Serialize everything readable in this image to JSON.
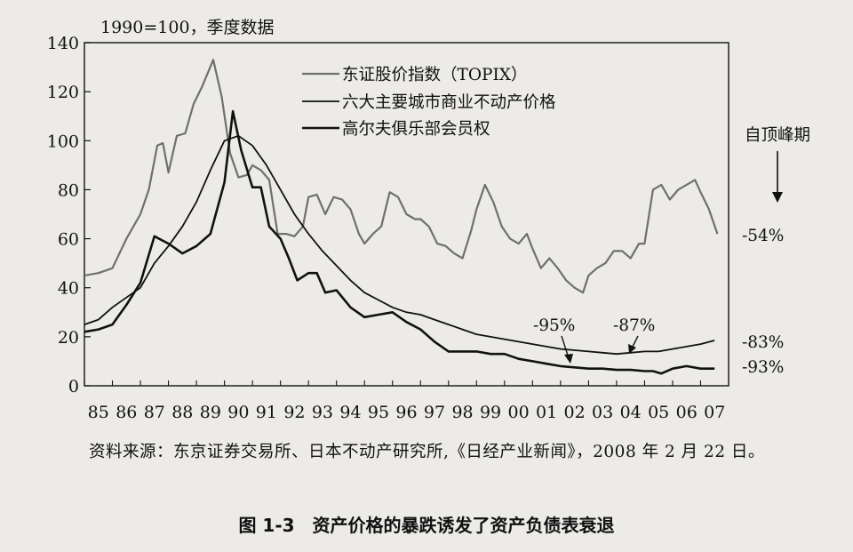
{
  "chart_data": {
    "type": "line",
    "unit_note": "1990=100，季度数据",
    "x_ticks": [
      "85",
      "86",
      "87",
      "88",
      "89",
      "90",
      "91",
      "92",
      "93",
      "94",
      "95",
      "96",
      "97",
      "98",
      "99",
      "00",
      "01",
      "02",
      "03",
      "04",
      "05",
      "06",
      "07"
    ],
    "y_ticks": [
      0,
      20,
      40,
      60,
      80,
      100,
      120,
      140
    ],
    "xlim": [
      1985,
      2008
    ],
    "ylim": [
      0,
      140
    ],
    "series": [
      {
        "name": "东证股价指数（TOPIX）",
        "color": "#6f6f6f",
        "style": "gray",
        "x": [
          1985,
          1985.5,
          1986,
          1986.5,
          1987,
          1987.3,
          1987.6,
          1987.8,
          1988,
          1988.3,
          1988.6,
          1988.9,
          1989.2,
          1989.6,
          1989.9,
          1990.2,
          1990.5,
          1990.8,
          1991,
          1991.3,
          1991.6,
          1991.9,
          1992.2,
          1992.5,
          1992.8,
          1993,
          1993.3,
          1993.6,
          1993.9,
          1994.2,
          1994.5,
          1994.8,
          1995,
          1995.3,
          1995.6,
          1995.9,
          1996.2,
          1996.5,
          1996.8,
          1997,
          1997.3,
          1997.6,
          1997.9,
          1998.2,
          1998.5,
          1998.8,
          1999,
          1999.3,
          1999.6,
          1999.9,
          2000.2,
          2000.5,
          2000.8,
          2001,
          2001.3,
          2001.6,
          2001.9,
          2002.2,
          2002.5,
          2002.8,
          2003,
          2003.3,
          2003.6,
          2003.9,
          2004.2,
          2004.5,
          2004.8,
          2005,
          2005.3,
          2005.6,
          2005.9,
          2006.2,
          2006.5,
          2006.8,
          2007,
          2007.3,
          2007.6
        ],
        "values": [
          45,
          46,
          48,
          60,
          70,
          80,
          98,
          99,
          87,
          102,
          103,
          115,
          122,
          133,
          118,
          95,
          85,
          86,
          90,
          88,
          84,
          62,
          62,
          61,
          65,
          77,
          78,
          70,
          77,
          76,
          72,
          62,
          58,
          62,
          65,
          79,
          77,
          70,
          68,
          68,
          65,
          58,
          57,
          54,
          52,
          63,
          72,
          82,
          75,
          65,
          60,
          58,
          62,
          56,
          48,
          52,
          48,
          43,
          40,
          38,
          45,
          48,
          50,
          55,
          55,
          52,
          58,
          58,
          80,
          82,
          76,
          80,
          82,
          84,
          79,
          72,
          62
        ]
      },
      {
        "name": "六大主要城市商业不动产价格",
        "color": "#111111",
        "style": "solid",
        "x": [
          1985,
          1985.5,
          1986,
          1986.5,
          1987,
          1987.5,
          1988,
          1988.5,
          1989,
          1989.5,
          1990,
          1990.5,
          1991,
          1991.5,
          1992,
          1992.5,
          1993,
          1993.5,
          1994,
          1994.5,
          1995,
          1995.5,
          1996,
          1996.5,
          1997,
          1997.5,
          1998,
          1998.5,
          1999,
          1999.5,
          2000,
          2000.5,
          2001,
          2001.5,
          2002,
          2002.5,
          2003,
          2003.5,
          2004,
          2004.5,
          2005,
          2005.5,
          2006,
          2006.5,
          2007,
          2007.5
        ],
        "values": [
          25,
          27,
          32,
          36,
          40,
          50,
          57,
          65,
          75,
          88,
          100,
          102,
          98,
          90,
          80,
          70,
          62,
          55,
          49,
          43,
          38,
          35,
          32,
          30,
          29,
          27,
          25,
          23,
          21,
          20,
          19,
          18,
          17,
          16,
          15,
          14.5,
          14,
          13.5,
          13,
          13.5,
          14,
          14,
          15,
          16,
          17,
          18.5
        ]
      },
      {
        "name": "高尔夫俱乐部会员权",
        "color": "#111111",
        "style": "bold",
        "x": [
          1985,
          1985.5,
          1986,
          1986.5,
          1987,
          1987.5,
          1988,
          1988.5,
          1989,
          1989.5,
          1990,
          1990.3,
          1990.6,
          1991,
          1991.3,
          1991.6,
          1992,
          1992.3,
          1992.6,
          1993,
          1993.3,
          1993.6,
          1994,
          1994.5,
          1995,
          1995.5,
          1996,
          1996.5,
          1997,
          1997.5,
          1998,
          1998.5,
          1999,
          1999.5,
          2000,
          2000.5,
          2001,
          2001.5,
          2002,
          2002.5,
          2003,
          2003.5,
          2004,
          2004.5,
          2005,
          2005.3,
          2005.6,
          2006,
          2006.5,
          2007,
          2007.5
        ],
        "values": [
          22,
          23,
          25,
          33,
          42,
          61,
          58,
          54,
          57,
          62,
          83,
          112,
          96,
          81,
          81,
          65,
          60,
          52,
          43,
          46,
          46,
          38,
          39,
          32,
          28,
          29,
          30,
          26,
          23,
          18,
          14,
          14,
          14,
          13,
          13,
          11,
          10,
          9,
          8,
          7.5,
          7,
          7,
          6.5,
          6.5,
          6,
          6,
          5,
          7,
          8,
          7,
          7
        ]
      }
    ],
    "annotations": {
      "peak_header": "自顶峰期",
      "end_labels": [
        "-54%",
        "-83%",
        "-93%"
      ],
      "mid_labels": [
        "-95%",
        "-87%"
      ]
    }
  },
  "source_text": "资料来源：东京证券交易所、日本不动产研究所,《日经产业新闻》，2008 年 2 月 22 日。",
  "caption": "图 1-3　资产价格的暴跌诱发了资产负债表衰退"
}
